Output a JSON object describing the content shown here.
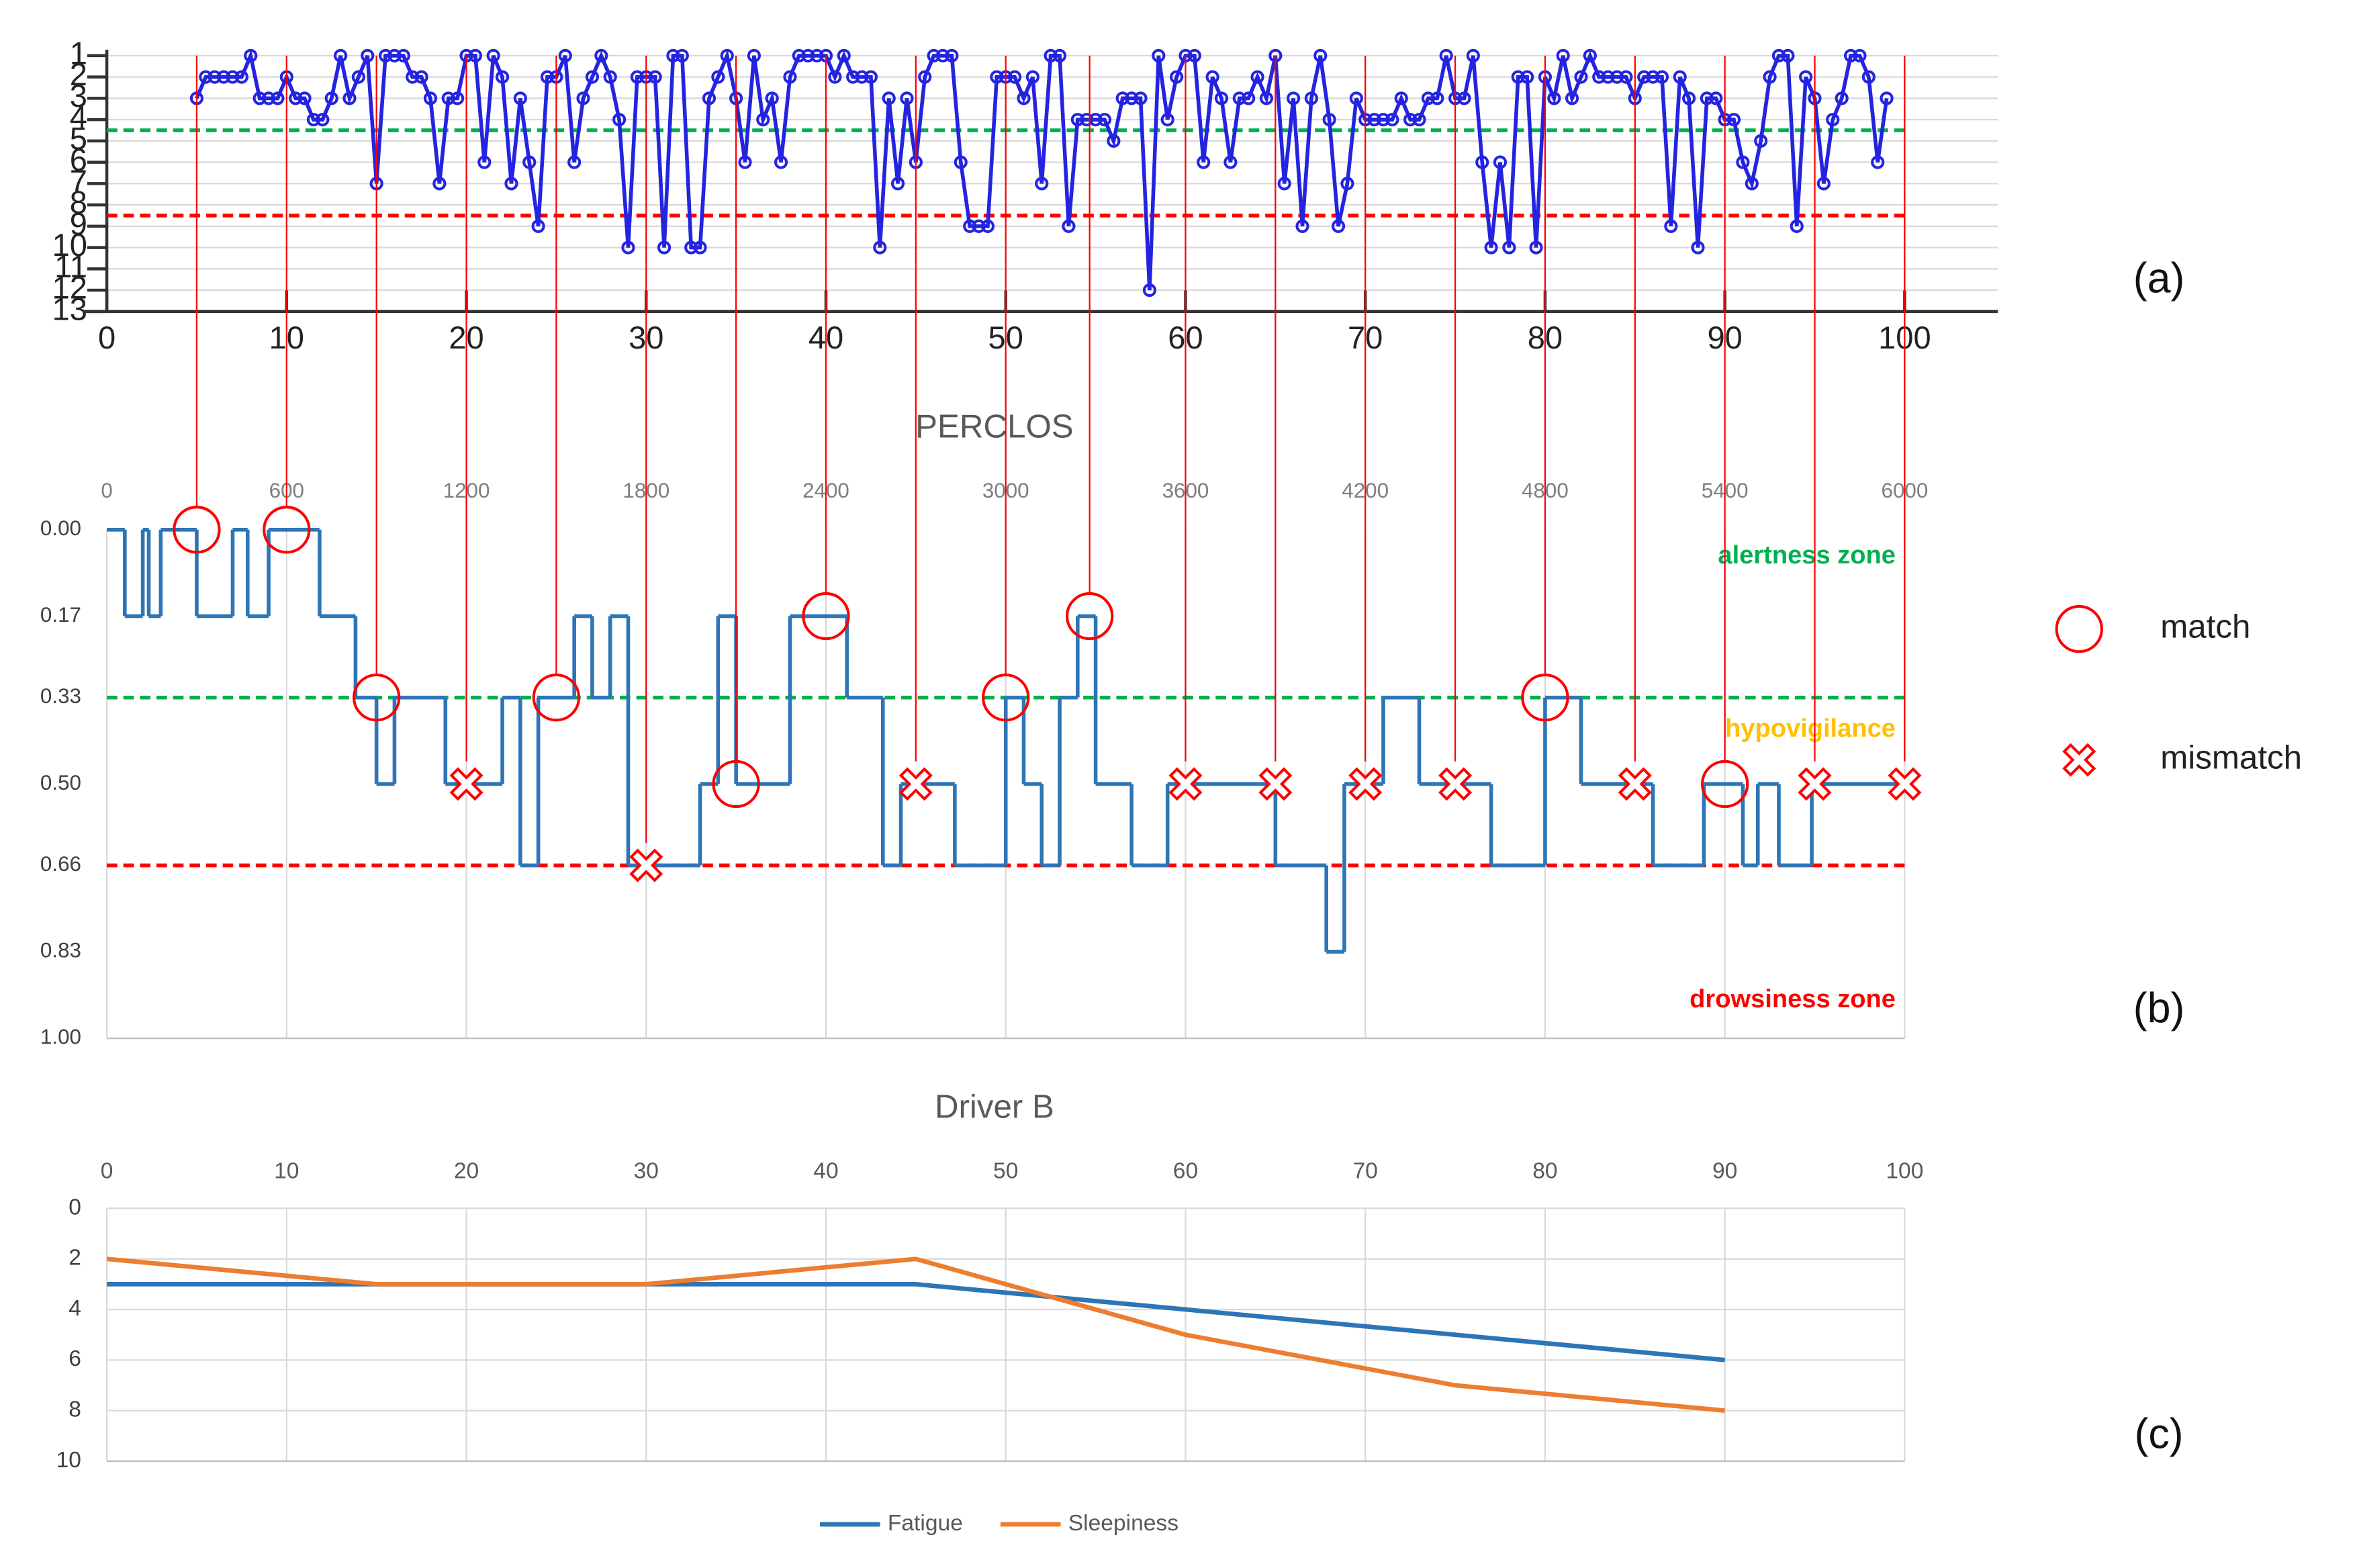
{
  "chart_data": [
    {
      "type": "line",
      "panel_label": "(a)",
      "xlim": [
        0,
        100
      ],
      "xticks": [
        0,
        10,
        20,
        30,
        40,
        50,
        60,
        70,
        80,
        90,
        100
      ],
      "ylim": [
        1,
        13
      ],
      "yticks": [
        1,
        2,
        3,
        4,
        5,
        6,
        7,
        8,
        9,
        10,
        11,
        12,
        13
      ],
      "y_inverted": true,
      "grid": "y",
      "x_axis_side": "bottom",
      "color": "#2424e0",
      "marker": "circle",
      "x": [
        5,
        5.5,
        6,
        6.5,
        7,
        7.5,
        8,
        8.5,
        9,
        9.5,
        10,
        10.5,
        11,
        11.5,
        12,
        12.5,
        13,
        13.5,
        14,
        14.5,
        15,
        15.5,
        16,
        16.5,
        17,
        17.5,
        18,
        18.5,
        19,
        19.5,
        20,
        20.5,
        21,
        21.5,
        22,
        22.5,
        23,
        23.5,
        24,
        24.5,
        25,
        25.5,
        26,
        26.5,
        27,
        27.5,
        28,
        28.5,
        29,
        29.5,
        30,
        30.5,
        31,
        31.5,
        32,
        32.5,
        33,
        33.5,
        34,
        34.5,
        35,
        35.5,
        36,
        36.5,
        37,
        37.5,
        38,
        38.5,
        39,
        39.5,
        40,
        40.5,
        41,
        41.5,
        42,
        42.5,
        43,
        43.5,
        44,
        44.5,
        45,
        45.5,
        46,
        46.5,
        47,
        47.5,
        48,
        48.5,
        49,
        49.5,
        50,
        50.5,
        51,
        51.5,
        52,
        52.5,
        53,
        53.5,
        54,
        54.5,
        55,
        55.5,
        56,
        56.5,
        57,
        57.5,
        58,
        58.5,
        59,
        59.5,
        60,
        60.5,
        61,
        61.5,
        62,
        62.5,
        63,
        63.5,
        64,
        64.5,
        65,
        65.5,
        66,
        66.5,
        67,
        67.5,
        68,
        68.5,
        69,
        69.5,
        70,
        70.5,
        71,
        71.5,
        72,
        72.5,
        73,
        73.5,
        74,
        74.5,
        75,
        75.5,
        76,
        76.5,
        77,
        77.5,
        78,
        78.5,
        79,
        79.5,
        80,
        80.5,
        81,
        81.5,
        82,
        82.5,
        83,
        83.5,
        84,
        84.5,
        85,
        85.5,
        86,
        86.5,
        87,
        87.5,
        88,
        88.5,
        89,
        89.5,
        90,
        90.5,
        91,
        91.5,
        92,
        92.5,
        93,
        93.5,
        94,
        94.5,
        95,
        95.5,
        96,
        96.5,
        97,
        97.5,
        98,
        98.5,
        99
      ],
      "values": [
        3,
        2,
        2,
        2,
        2,
        2,
        1,
        3,
        3,
        3,
        2,
        3,
        3,
        4,
        4,
        3,
        1,
        3,
        2,
        1,
        7,
        1,
        1,
        1,
        2,
        2,
        3,
        7,
        3,
        3,
        1,
        1,
        6,
        1,
        2,
        7,
        3,
        6,
        9,
        2,
        2,
        1,
        6,
        3,
        2,
        1,
        2,
        4,
        10,
        2,
        2,
        2,
        10,
        1,
        1,
        10,
        10,
        3,
        2,
        1,
        3,
        6,
        1,
        4,
        3,
        6,
        2,
        1,
        1,
        1,
        1,
        2,
        1,
        2,
        2,
        2,
        10,
        3,
        7,
        3,
        6,
        2,
        1,
        1,
        1,
        6,
        9,
        9,
        9,
        2,
        2,
        2,
        3,
        2,
        7,
        1,
        1,
        9,
        4,
        4,
        4,
        4,
        5,
        3,
        3,
        3,
        12,
        1,
        4,
        2,
        1,
        1,
        6,
        2,
        3,
        6,
        3,
        3,
        2,
        3,
        1,
        7,
        3,
        9,
        3,
        1,
        4,
        9,
        7,
        3,
        4,
        4,
        4,
        4,
        3,
        4,
        4,
        3,
        3,
        1,
        3,
        3,
        1,
        6,
        10,
        6,
        10,
        2,
        2,
        10,
        2,
        3,
        1,
        3,
        2,
        1,
        2,
        2,
        2,
        2,
        3,
        2,
        2,
        2,
        9,
        2,
        3,
        10,
        3,
        3,
        4,
        4,
        6,
        7,
        5,
        2,
        1,
        1,
        9,
        2,
        3,
        7,
        4,
        3,
        1,
        1,
        2,
        6,
        3
      ],
      "ref_lines": [
        {
          "value": 4.5,
          "color": "#00b050"
        },
        {
          "value": 8.5,
          "color": "#ff0000"
        }
      ]
    },
    {
      "type": "line",
      "step": true,
      "title": "PERCLOS",
      "panel_label": "(b)",
      "xlim": [
        0,
        6000
      ],
      "xticks": [
        0,
        600,
        1200,
        1800,
        2400,
        3000,
        3600,
        4200,
        4800,
        5400,
        6000
      ],
      "ylim": [
        0,
        1
      ],
      "yticks": [
        {
          "value": 0,
          "label": "0.00"
        },
        0.17,
        0.33,
        {
          "value": 0.5,
          "label": "0.50"
        },
        0.66,
        0.83,
        {
          "value": 1,
          "label": "1.00"
        }
      ],
      "y_inverted": true,
      "grid": "x",
      "x_axis_side": "top",
      "color": "#2e75b6",
      "x": [
        0,
        60,
        120,
        140,
        180,
        300,
        420,
        470,
        540,
        710,
        830,
        900,
        960,
        1130,
        1320,
        1380,
        1440,
        1560,
        1620,
        1680,
        1740,
        1980,
        2040,
        2100,
        2280,
        2470,
        2590,
        2650,
        2830,
        3000,
        3060,
        3120,
        3180,
        3240,
        3300,
        3420,
        3540,
        3900,
        4070,
        4130,
        4260,
        4380,
        4620,
        4800,
        4920,
        5160,
        5330,
        5460,
        5510,
        5580,
        5690,
        6000
      ],
      "values": [
        0,
        0.17,
        0,
        0.17,
        0,
        0.17,
        0,
        0.17,
        0,
        0.17,
        0.33,
        0.5,
        0.33,
        0.5,
        0.33,
        0.66,
        0.33,
        0.17,
        0.33,
        0.17,
        0.66,
        0.5,
        0.17,
        0.5,
        0.17,
        0.33,
        0.66,
        0.5,
        0.66,
        0.33,
        0.5,
        0.66,
        0.33,
        0.17,
        0.5,
        0.66,
        0.5,
        0.66,
        0.83,
        0.5,
        0.33,
        0.5,
        0.66,
        0.33,
        0.5,
        0.66,
        0.5,
        0.66,
        0.5,
        0.66,
        0.5,
        0.5
      ],
      "ref_lines": [
        {
          "value": 0.33,
          "color": "#00b050"
        },
        {
          "value": 0.66,
          "color": "#ff0000"
        }
      ],
      "annotations": [
        {
          "text": "alertness zone",
          "color": "#00b050"
        },
        {
          "text": "hypovigilance",
          "color": "#ffc000"
        },
        {
          "text": "drowsiness zone",
          "color": "#ff0000"
        }
      ],
      "marker_sets": [
        {
          "name": "match",
          "shape": "circle",
          "color": "#ff0000",
          "x": [
            300,
            600,
            900,
            1500,
            2100,
            2400,
            3000,
            3280,
            4800,
            5400
          ],
          "values": [
            0,
            0,
            0.33,
            0.33,
            0.5,
            0.17,
            0.33,
            0.17,
            0.33,
            0.5
          ]
        },
        {
          "name": "mismatch",
          "shape": "cross",
          "color": "#ff0000",
          "x": [
            1200,
            1800,
            2700,
            3600,
            3900,
            4200,
            4500,
            5100,
            5700,
            6000
          ],
          "values": [
            0.5,
            0.66,
            0.5,
            0.5,
            0.5,
            0.5,
            0.5,
            0.5,
            0.5,
            0.5
          ]
        }
      ]
    },
    {
      "type": "line",
      "title": "Driver B",
      "panel_label": "(c)",
      "xlim": [
        0,
        100
      ],
      "xticks": [
        0,
        10,
        20,
        30,
        40,
        50,
        60,
        70,
        80,
        90,
        100
      ],
      "ylim": [
        0,
        10
      ],
      "yticks": [
        0,
        2,
        4,
        6,
        8,
        10
      ],
      "y_inverted": true,
      "grid": "both",
      "x_axis_side": "top",
      "legend": "bottom",
      "x": [
        0,
        15,
        30,
        45,
        60,
        75,
        90
      ],
      "series": [
        {
          "name": "Fatigue",
          "color": "#2e75b6",
          "values": [
            3,
            3,
            3,
            3,
            4,
            5,
            6
          ]
        },
        {
          "name": "Sleepiness",
          "color": "#ed7d31",
          "values": [
            2,
            3,
            3,
            2,
            5,
            7,
            8
          ]
        }
      ]
    }
  ]
}
